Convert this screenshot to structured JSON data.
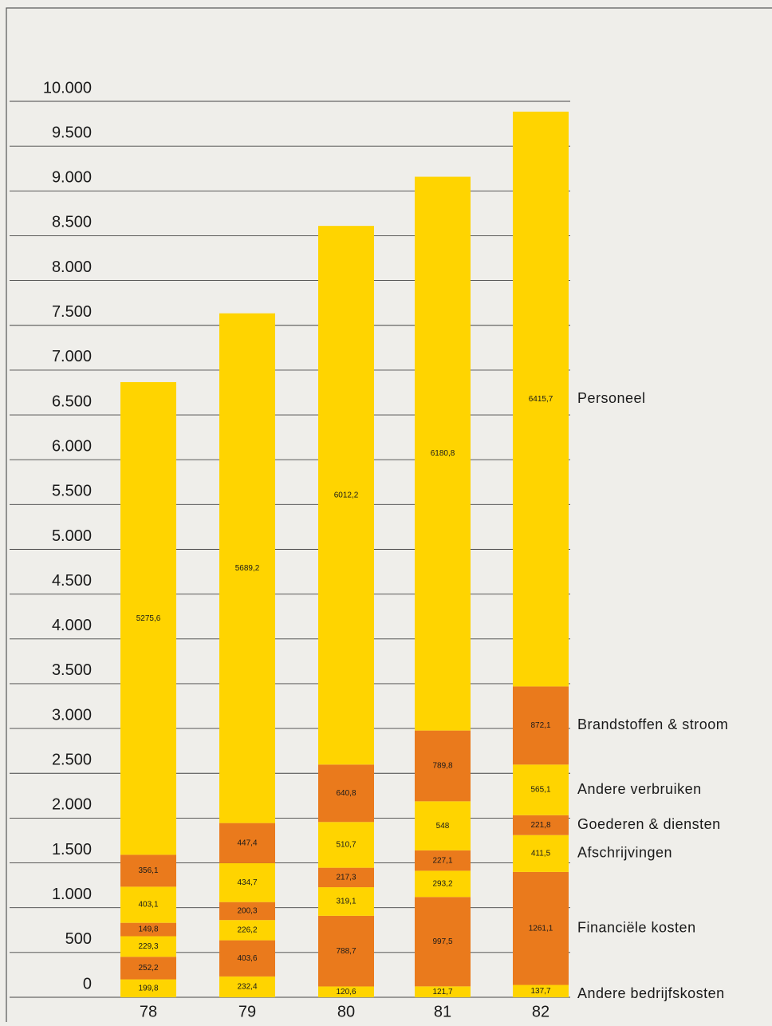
{
  "chart_data": {
    "type": "bar",
    "stacked": true,
    "categories": [
      "78",
      "79",
      "80",
      "81",
      "82"
    ],
    "series": [
      {
        "name": "Andere bedrijfskosten",
        "color": "#ffd400",
        "values": [
          199.8,
          232.4,
          120.6,
          121.7,
          137.7
        ],
        "value_labels": [
          "199,8",
          "232,4",
          "120,6",
          "121,7",
          "137,7"
        ]
      },
      {
        "name": "Financiële kosten",
        "color": "#ea7a1c",
        "values": [
          252.2,
          403.6,
          788.7,
          997.5,
          1261.1
        ],
        "value_labels": [
          "252,2",
          "403,6",
          "788,7",
          "997,5",
          "1261,1"
        ]
      },
      {
        "name": "Afschrijvingen",
        "color": "#ffd400",
        "values": [
          229.3,
          226.2,
          319.1,
          293.2,
          411.5
        ],
        "value_labels": [
          "229,3",
          "226,2",
          "319,1",
          "293,2",
          "411,5"
        ]
      },
      {
        "name": "Goederen & diensten",
        "color": "#ea7a1c",
        "values": [
          149.8,
          200.3,
          217.3,
          227.1,
          221.8
        ],
        "value_labels": [
          "149,8",
          "200,3",
          "217,3",
          "227,1",
          "221,8"
        ]
      },
      {
        "name": "Andere verbruiken",
        "color": "#ffd400",
        "values": [
          403.1,
          434.7,
          510.7,
          548,
          565.1
        ],
        "value_labels": [
          "403,1",
          "434,7",
          "510,7",
          "548",
          "565,1"
        ]
      },
      {
        "name": "Brandstoffen & stroom",
        "color": "#ea7a1c",
        "values": [
          356.1,
          447.4,
          640.8,
          789.8,
          872.1
        ],
        "value_labels": [
          "356,1",
          "447,4",
          "640,8",
          "789,8",
          "872,1"
        ]
      },
      {
        "name": "Personeel",
        "color": "#ffd400",
        "values": [
          5275.6,
          5689.2,
          6012.2,
          6180.8,
          6415.7
        ],
        "value_labels": [
          "5275,6",
          "5689,2",
          "6012,2",
          "6180,8",
          "6415,7"
        ]
      }
    ],
    "ylim": [
      0,
      10000
    ],
    "yticks": [
      0,
      500,
      {
        "value": 1000,
        "label": "1.000"
      },
      {
        "value": 1500,
        "label": "1.500"
      },
      {
        "value": 2000,
        "label": "2.000"
      },
      {
        "value": 2500,
        "label": "2.500"
      },
      {
        "value": 3000,
        "label": "3.000"
      },
      {
        "value": 3500,
        "label": "3.500"
      },
      {
        "value": 4000,
        "label": "4.000"
      },
      {
        "value": 4500,
        "label": "4.500"
      },
      {
        "value": 5000,
        "label": "5.000"
      },
      {
        "value": 5500,
        "label": "5.500"
      },
      {
        "value": 6000,
        "label": "6.000"
      },
      {
        "value": 6500,
        "label": "6.500"
      },
      {
        "value": 7000,
        "label": "7.000"
      },
      {
        "value": 7500,
        "label": "7.500"
      },
      {
        "value": 8000,
        "label": "8.000"
      },
      {
        "value": 8500,
        "label": "8.500"
      },
      {
        "value": 9000,
        "label": "9.000"
      },
      {
        "value": 9500,
        "label": "9.500"
      },
      {
        "value": 10000,
        "label": "10.000"
      }
    ],
    "grid": true
  }
}
